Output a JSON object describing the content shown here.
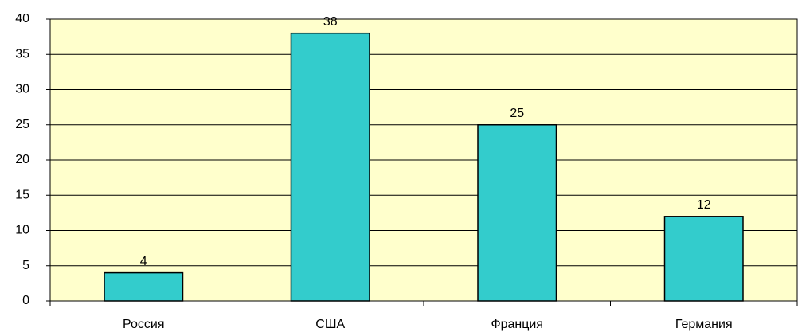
{
  "chart_data": {
    "type": "bar",
    "categories": [
      "Россия",
      "США",
      "Франция",
      "Германия"
    ],
    "values": [
      4,
      38,
      25,
      12
    ],
    "color": "#33cccc",
    "ylim": [
      0,
      40
    ],
    "yticks": [
      0,
      5,
      10,
      15,
      20,
      25,
      30,
      35,
      40
    ],
    "grid": true,
    "data_labels": true
  }
}
